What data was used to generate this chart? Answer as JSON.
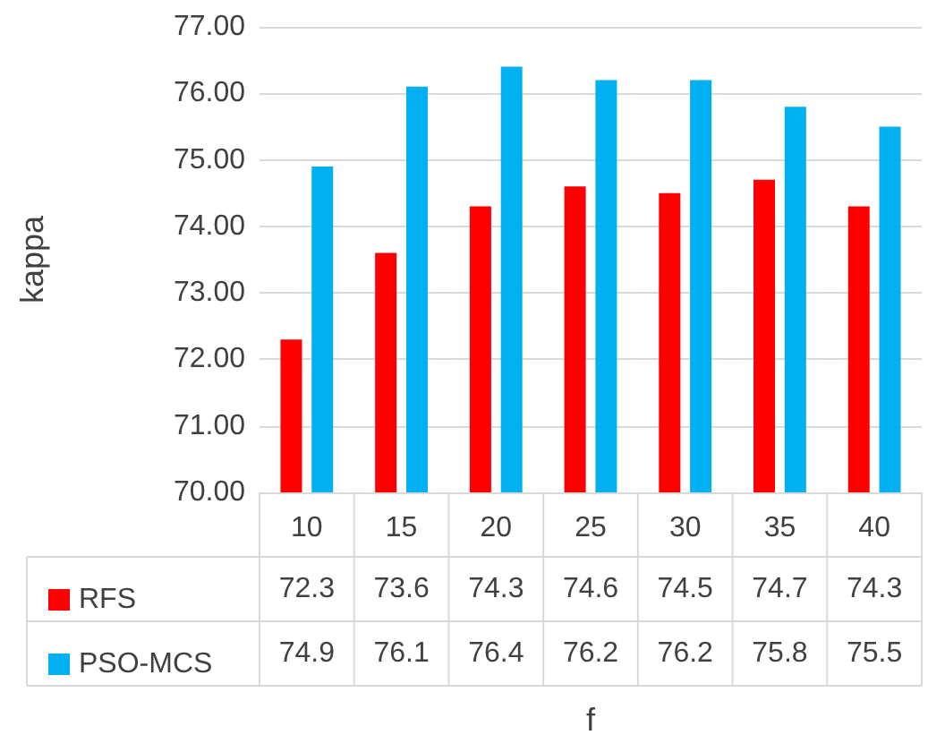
{
  "chart_data": {
    "type": "bar",
    "xlabel": "f",
    "ylabel": "kappa",
    "categories": [
      "10",
      "15",
      "20",
      "25",
      "30",
      "35",
      "40"
    ],
    "series": [
      {
        "name": "RFS",
        "color": "#ff0000",
        "values": [
          72.3,
          73.6,
          74.3,
          74.6,
          74.5,
          74.7,
          74.3
        ]
      },
      {
        "name": "PSO-MCS",
        "color": "#00b0f0",
        "values": [
          74.9,
          76.1,
          76.4,
          76.2,
          76.2,
          75.8,
          75.5
        ]
      }
    ],
    "ylim": [
      70,
      77
    ],
    "yticks": [
      {
        "value": 70,
        "label": "70.00"
      },
      {
        "value": 71,
        "label": "71.00"
      },
      {
        "value": 72,
        "label": "72.00"
      },
      {
        "value": 73,
        "label": "73.00"
      },
      {
        "value": 74,
        "label": "74.00"
      },
      {
        "value": 75,
        "label": "75.00"
      },
      {
        "value": 76,
        "label": "76.00"
      },
      {
        "value": 77,
        "label": "77.00"
      }
    ],
    "grid": "y",
    "legend": "bottom left",
    "data_labels": true
  }
}
